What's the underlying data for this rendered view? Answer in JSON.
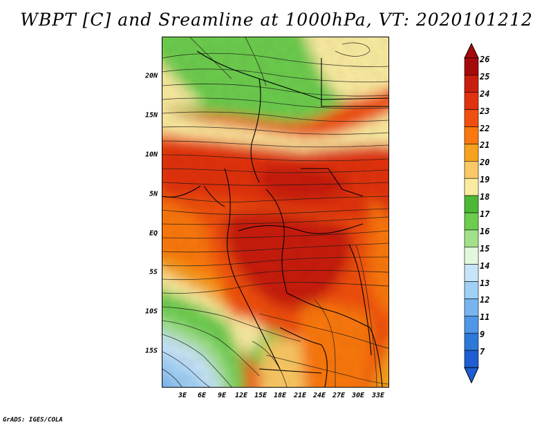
{
  "title": "WBPT [C] and Sreamline at 1000hPa, VT: 2020101212",
  "latitude_labels": [
    "20N",
    "15N",
    "10N",
    "5N",
    "EQ",
    "5S",
    "10S",
    "15S"
  ],
  "longitude_labels": [
    "3E",
    "6E",
    "9E",
    "12E",
    "15E",
    "18E",
    "21E",
    "24E",
    "27E",
    "30E",
    "33E"
  ],
  "colorbar": {
    "levels": [
      "26",
      "25",
      "24",
      "23",
      "22",
      "21",
      "20",
      "19",
      "18",
      "17",
      "16",
      "15",
      "14",
      "13",
      "12",
      "11",
      "9",
      "7"
    ],
    "colors": [
      "#a50a0a",
      "#c81e0f",
      "#e1320f",
      "#f0500f",
      "#fa780f",
      "#f7a21e",
      "#fac864",
      "#faeba0",
      "#4cb836",
      "#6ccc4e",
      "#a3e08b",
      "#e2f7dc",
      "#c8e4f8",
      "#a0d0f5",
      "#78b4ee",
      "#5096e6",
      "#2d78d8",
      "#1e5ed2"
    ]
  },
  "credit": "GrADS: IGES/COLA"
}
